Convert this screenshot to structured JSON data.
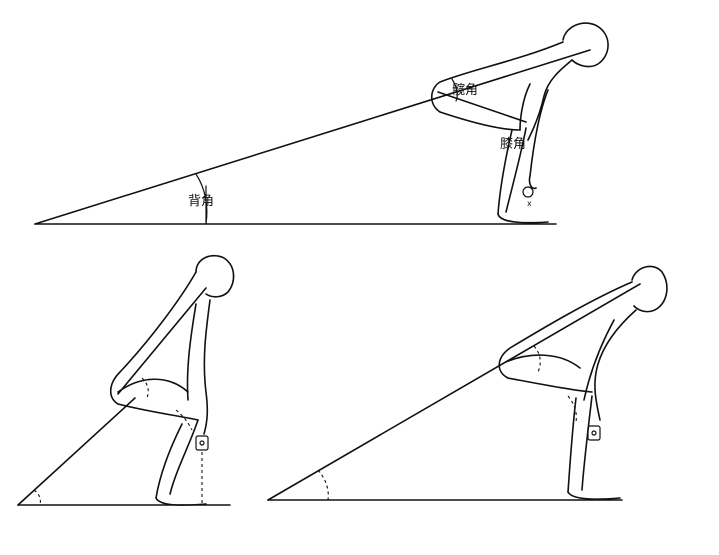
{
  "labels": {
    "hip_angle": "髋角",
    "knee_angle": "膝角",
    "back_angle": "背角"
  }
}
